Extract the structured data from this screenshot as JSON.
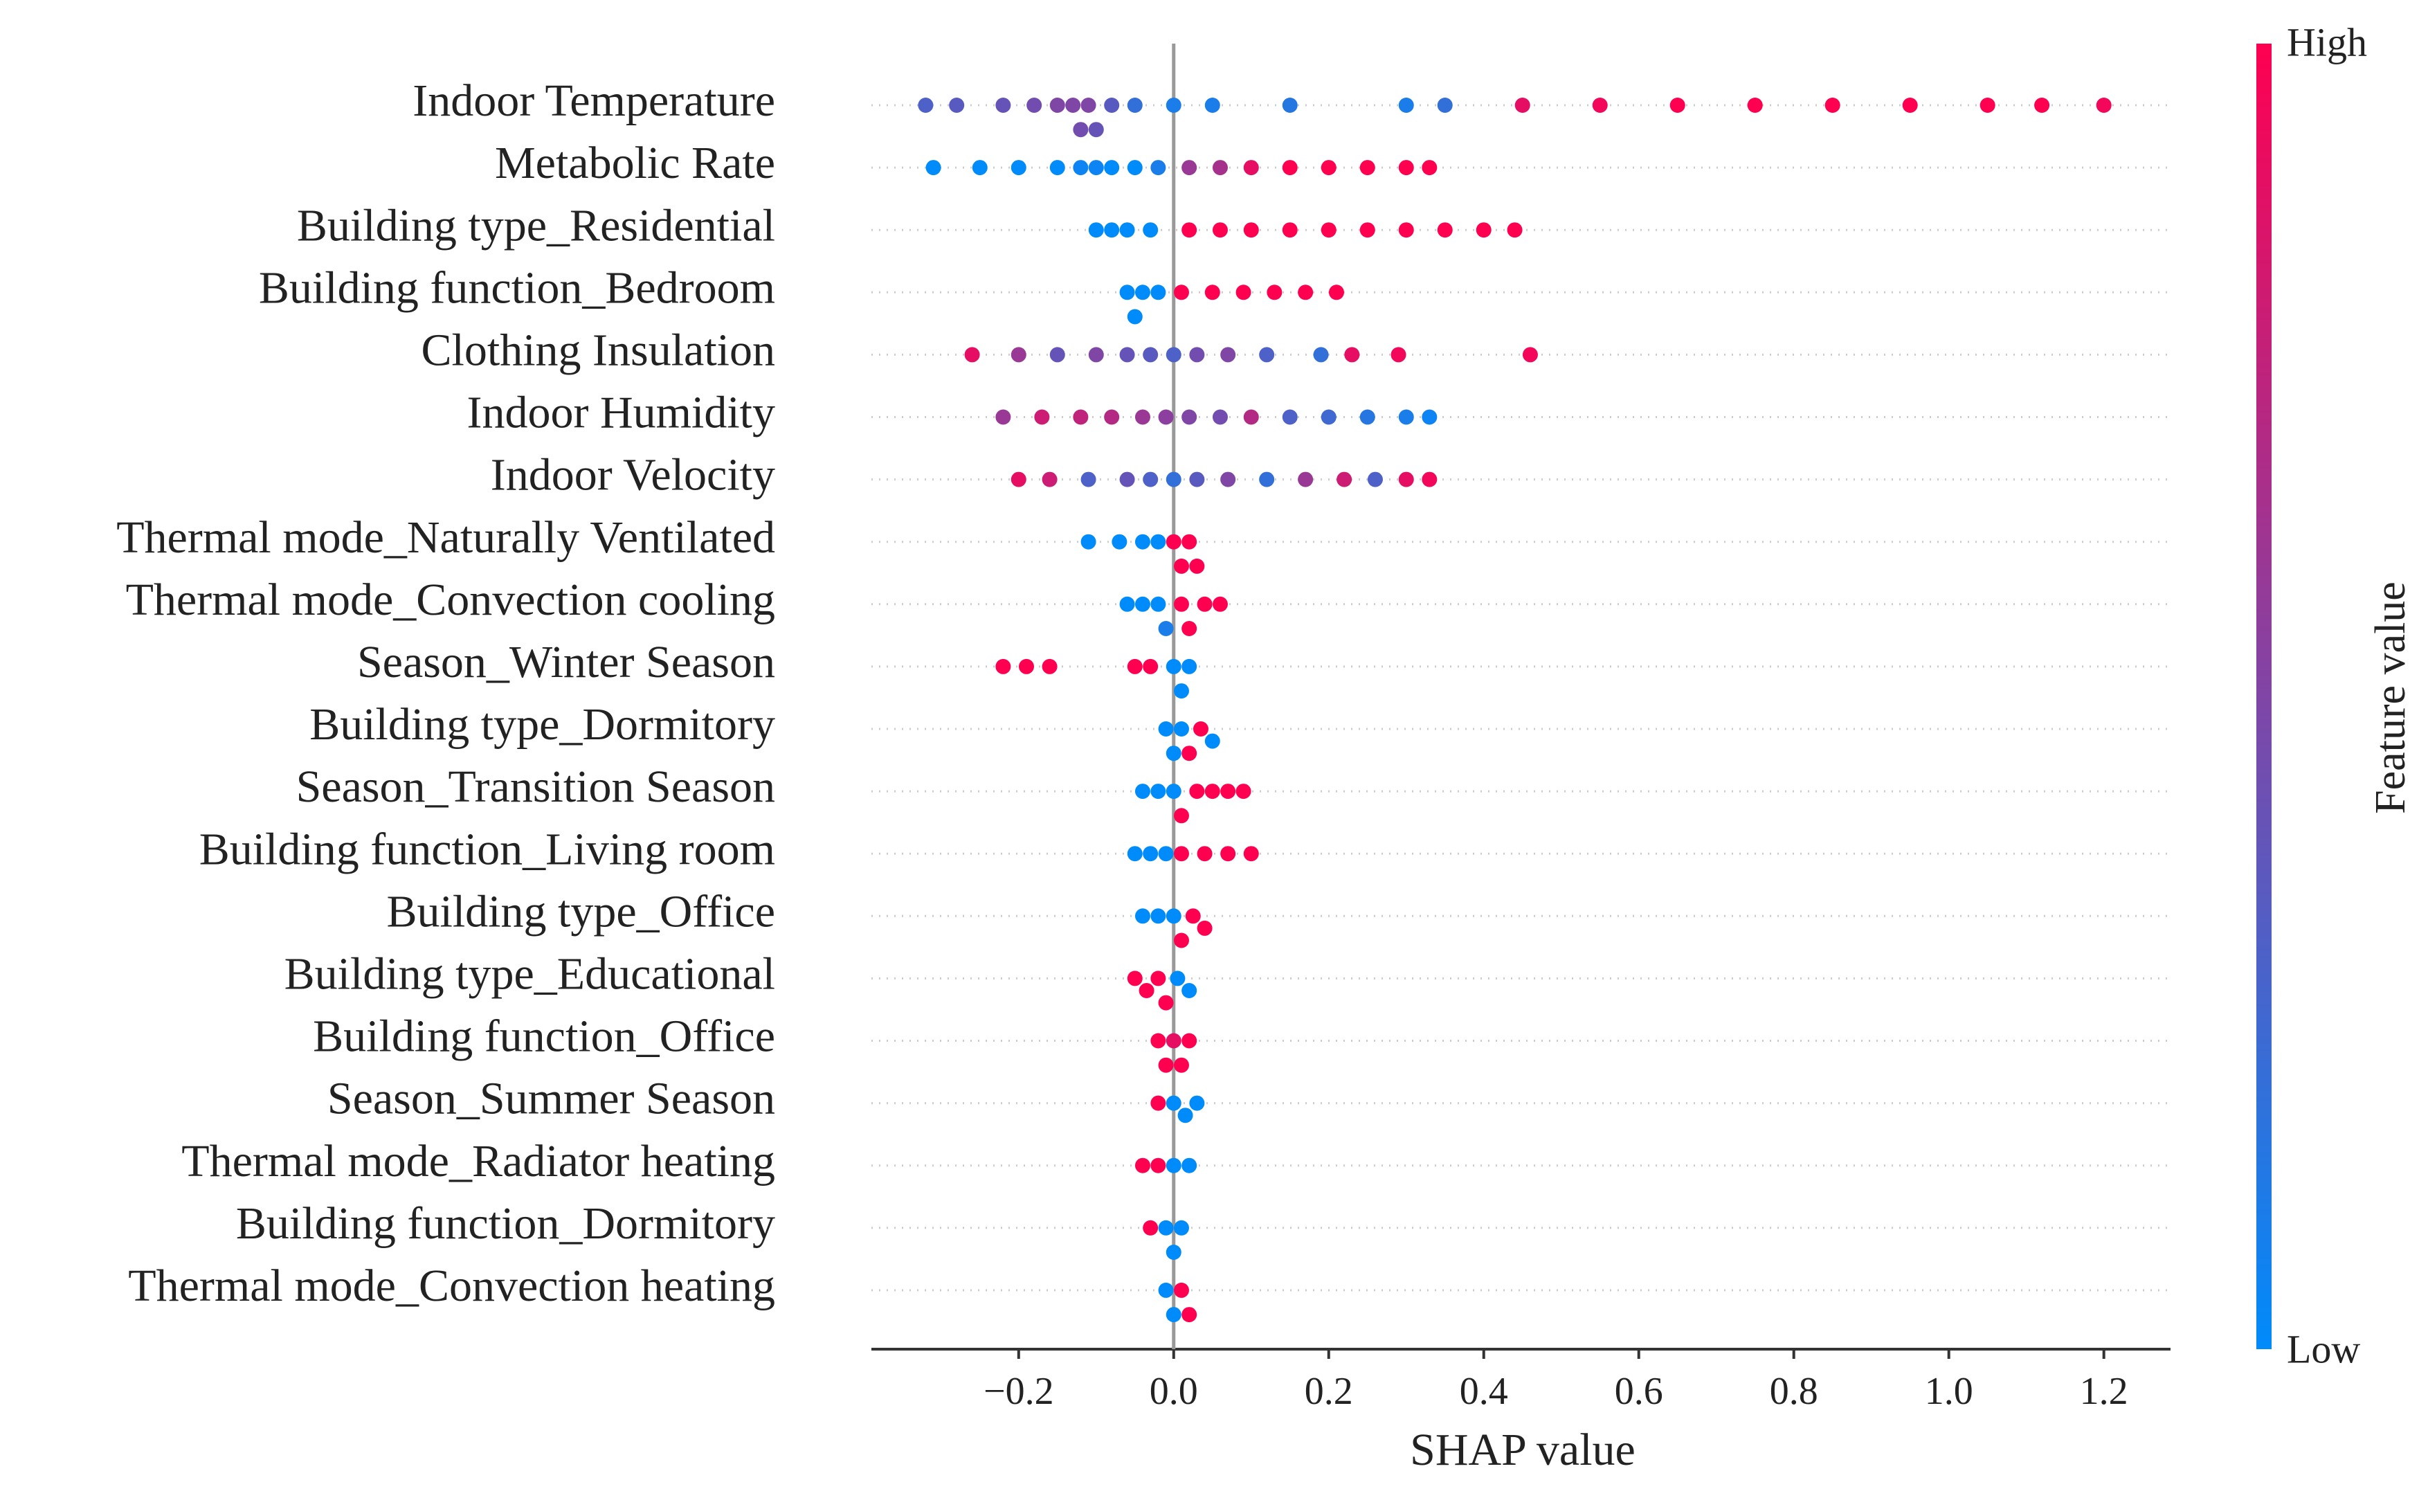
{
  "chart_data": {
    "type": "beeswarm",
    "xlabel": "SHAP value",
    "xlim": [
      -0.39,
      1.286
    ],
    "xticks": [
      {
        "value": -0.2,
        "label": "−0.2"
      },
      {
        "value": 0,
        "label": "0.0"
      },
      0.2,
      0.4,
      0.6,
      0.8,
      {
        "value": 1,
        "label": "1.0"
      },
      1.2
    ],
    "colormap": [
      "#008bfb",
      "#ff0051"
    ],
    "colorbar": {
      "label": "Feature value",
      "high": "High",
      "low": "Low"
    },
    "series": [
      {
        "name": "Indoor Temperature",
        "values": [
          -0.32,
          -0.28,
          -0.22,
          -0.18,
          -0.15,
          -0.13,
          -0.12,
          -0.11,
          -0.1,
          -0.08,
          -0.05,
          0.0,
          0.05,
          0.15,
          0.3,
          0.35,
          0.45,
          0.55,
          0.65,
          0.75,
          0.85,
          0.95,
          1.05,
          1.12,
          1.2
        ],
        "feature_values": [
          0.3,
          0.35,
          0.4,
          0.45,
          0.5,
          0.5,
          0.45,
          0.5,
          0.4,
          0.35,
          0.2,
          0.1,
          0.1,
          0.15,
          0.1,
          0.2,
          0.9,
          0.95,
          1,
          1,
          1,
          1,
          1,
          1,
          0.95
        ]
      },
      {
        "name": "Metabolic Rate",
        "values": [
          -0.31,
          -0.25,
          -0.2,
          -0.15,
          -0.12,
          -0.1,
          -0.08,
          -0.05,
          -0.02,
          0.02,
          0.06,
          0.1,
          0.15,
          0.2,
          0.25,
          0.3,
          0.33
        ],
        "feature_values": [
          0,
          0,
          0,
          0,
          0.05,
          0.05,
          0,
          0,
          0.1,
          0.6,
          0.65,
          0.9,
          1,
          1,
          1,
          1,
          1
        ]
      },
      {
        "name": "Building type_Residential",
        "values": [
          -0.1,
          -0.08,
          -0.06,
          -0.03,
          0.02,
          0.06,
          0.1,
          0.15,
          0.2,
          0.25,
          0.3,
          0.35,
          0.4,
          0.44
        ],
        "feature_values": [
          0,
          0,
          0,
          0,
          1,
          1,
          1,
          1,
          1,
          1,
          1,
          1,
          1,
          1
        ]
      },
      {
        "name": "Building function_Bedroom",
        "values": [
          -0.06,
          -0.05,
          -0.04,
          -0.02,
          0.01,
          0.05,
          0.09,
          0.13,
          0.17,
          0.21
        ],
        "feature_values": [
          0,
          0,
          0,
          0,
          1,
          1,
          1,
          1,
          1,
          1
        ]
      },
      {
        "name": "Clothing Insulation",
        "values": [
          -0.26,
          -0.2,
          -0.15,
          -0.1,
          -0.06,
          -0.03,
          0.0,
          0.03,
          0.07,
          0.12,
          0.19,
          0.23,
          0.29,
          0.46
        ],
        "feature_values": [
          0.9,
          0.6,
          0.4,
          0.5,
          0.4,
          0.35,
          0.3,
          0.45,
          0.5,
          0.3,
          0.2,
          0.9,
          0.95,
          0.95
        ]
      },
      {
        "name": "Indoor Humidity",
        "values": [
          -0.22,
          -0.17,
          -0.12,
          -0.08,
          -0.04,
          -0.01,
          0.02,
          0.06,
          0.1,
          0.15,
          0.2,
          0.25,
          0.3,
          0.33
        ],
        "feature_values": [
          0.6,
          0.8,
          0.75,
          0.7,
          0.6,
          0.55,
          0.5,
          0.45,
          0.7,
          0.3,
          0.25,
          0.15,
          0.1,
          0.05
        ]
      },
      {
        "name": "Indoor Velocity",
        "values": [
          -0.2,
          -0.16,
          -0.11,
          -0.06,
          -0.03,
          0.0,
          0.03,
          0.07,
          0.12,
          0.17,
          0.22,
          0.26,
          0.3,
          0.33
        ],
        "feature_values": [
          0.9,
          0.8,
          0.3,
          0.4,
          0.3,
          0.2,
          0.35,
          0.5,
          0.2,
          0.6,
          0.8,
          0.3,
          0.9,
          0.95
        ]
      },
      {
        "name": "Thermal mode_Naturally Ventilated",
        "values": [
          -0.11,
          -0.07,
          -0.04,
          -0.02,
          0.0,
          0.01,
          0.02,
          0.03
        ],
        "feature_values": [
          0,
          0,
          0,
          0,
          1,
          1,
          1,
          1
        ]
      },
      {
        "name": "Thermal mode_Convection cooling",
        "values": [
          -0.06,
          -0.04,
          -0.02,
          -0.01,
          0.01,
          0.02,
          0.04,
          0.06
        ],
        "feature_values": [
          0,
          0,
          0,
          0.1,
          1,
          1,
          1,
          1
        ]
      },
      {
        "name": "Season_Winter Season",
        "values": [
          -0.22,
          -0.19,
          -0.16,
          -0.05,
          -0.03,
          0.0,
          0.01,
          0.02
        ],
        "feature_values": [
          1,
          1,
          1,
          1,
          1,
          0,
          0,
          0
        ]
      },
      {
        "name": "Building type_Dormitory",
        "values": [
          -0.01,
          0.0,
          0.01,
          0.02,
          0.035,
          0.05
        ],
        "feature_values": [
          0,
          0,
          0,
          1,
          1,
          0
        ]
      },
      {
        "name": "Season_Transition Season",
        "values": [
          -0.04,
          -0.02,
          0.0,
          0.01,
          0.03,
          0.05,
          0.07,
          0.09
        ],
        "feature_values": [
          0,
          0,
          0,
          1,
          1,
          1,
          1,
          1
        ]
      },
      {
        "name": "Building function_Living room",
        "values": [
          -0.05,
          -0.03,
          -0.01,
          0.01,
          0.04,
          0.07,
          0.1
        ],
        "feature_values": [
          0,
          0,
          0,
          1,
          1,
          1,
          1
        ]
      },
      {
        "name": "Building type_Office",
        "values": [
          -0.04,
          -0.02,
          0.0,
          0.01,
          0.025,
          0.04
        ],
        "feature_values": [
          0,
          0,
          0,
          1,
          1,
          1
        ]
      },
      {
        "name": "Building type_Educational",
        "values": [
          -0.05,
          -0.035,
          -0.02,
          -0.01,
          0.005,
          0.02
        ],
        "feature_values": [
          1,
          1,
          1,
          1,
          0,
          0
        ]
      },
      {
        "name": "Building function_Office",
        "values": [
          -0.02,
          -0.01,
          0.0,
          0.01,
          0.02
        ],
        "feature_values": [
          1,
          1,
          0.9,
          1,
          1
        ]
      },
      {
        "name": "Season_Summer Season",
        "values": [
          -0.02,
          0.0,
          0.015,
          0.03
        ],
        "feature_values": [
          1,
          0,
          0,
          0
        ]
      },
      {
        "name": "Thermal mode_Radiator heating",
        "values": [
          -0.04,
          -0.02,
          0.0,
          0.02
        ],
        "feature_values": [
          1,
          1,
          0,
          0
        ]
      },
      {
        "name": "Building function_Dormitory",
        "values": [
          -0.03,
          -0.01,
          0.0,
          0.01
        ],
        "feature_values": [
          1,
          0,
          0,
          0
        ]
      },
      {
        "name": "Thermal mode_Convection heating",
        "values": [
          -0.01,
          0.0,
          0.01,
          0.02
        ],
        "feature_values": [
          0,
          0,
          1,
          1
        ]
      }
    ]
  }
}
